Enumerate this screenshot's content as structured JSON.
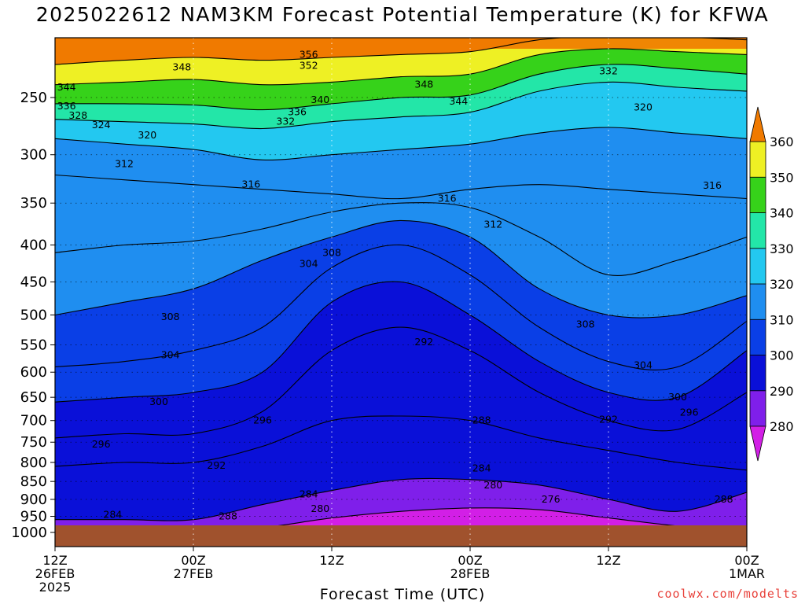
{
  "chart_data": {
    "type": "heatmap",
    "title": "2025022612 NAM3KM Forecast Potential Temperature (K) for KFWA",
    "xlabel": "Forecast Time (UTC)",
    "credit": "coolwx.com/modelts",
    "y_axis": {
      "scale": "log-pressure, inverted",
      "ylim": [
        1000,
        200
      ],
      "ticks": [
        250,
        300,
        350,
        400,
        450,
        500,
        550,
        600,
        650,
        700,
        750,
        800,
        850,
        900,
        950,
        1000
      ]
    },
    "x_axis": {
      "ticks": [
        {
          "hour": 0,
          "lines": [
            "12Z",
            "26FEB",
            "2025"
          ]
        },
        {
          "hour": 12,
          "lines": [
            "00Z",
            "27FEB"
          ]
        },
        {
          "hour": 24,
          "lines": [
            "12Z"
          ]
        },
        {
          "hour": 36,
          "lines": [
            "00Z",
            "28FEB"
          ]
        },
        {
          "hour": 48,
          "lines": [
            "12Z"
          ]
        },
        {
          "hour": 60,
          "lines": [
            "00Z",
            "1MAR"
          ]
        }
      ],
      "xlim": [
        0,
        60
      ]
    },
    "colorbar": {
      "levels": [
        280,
        290,
        300,
        310,
        320,
        330,
        340,
        350,
        360
      ],
      "colors": [
        "#d21fe6",
        "#7f1fea",
        "#0a10d8",
        "#0a3fe6",
        "#1f8ef0",
        "#23c8f0",
        "#23e6a8",
        "#36d21a",
        "#eef024",
        "#f5b400",
        "#f07a00"
      ]
    },
    "isentropes": {
      "hours": [
        0,
        6,
        12,
        18,
        24,
        30,
        36,
        42,
        48,
        54,
        60
      ],
      "series": [
        {
          "theta": 280,
          "pressures": [
            1000,
            1000,
            1000,
            985,
            955,
            935,
            925,
            930,
            955,
            980,
            1000
          ]
        },
        {
          "theta": 288,
          "pressures": [
            960,
            960,
            960,
            915,
            875,
            845,
            845,
            860,
            900,
            935,
            880
          ]
        },
        {
          "theta": 292,
          "pressures": [
            810,
            800,
            800,
            760,
            700,
            690,
            700,
            740,
            770,
            800,
            820
          ]
        },
        {
          "theta": 296,
          "pressures": [
            740,
            730,
            730,
            680,
            560,
            520,
            560,
            640,
            700,
            720,
            640
          ]
        },
        {
          "theta": 300,
          "pressures": [
            660,
            650,
            640,
            600,
            480,
            450,
            500,
            580,
            640,
            650,
            560
          ]
        },
        {
          "theta": 304,
          "pressures": [
            590,
            580,
            560,
            520,
            430,
            400,
            440,
            520,
            580,
            590,
            510
          ]
        },
        {
          "theta": 308,
          "pressures": [
            500,
            480,
            460,
            420,
            390,
            370,
            390,
            460,
            500,
            500,
            470
          ]
        },
        {
          "theta": 312,
          "pressures": [
            410,
            400,
            395,
            380,
            360,
            350,
            355,
            390,
            440,
            420,
            390
          ]
        },
        {
          "theta": 316,
          "pressures": [
            320,
            325,
            330,
            335,
            340,
            345,
            335,
            330,
            335,
            340,
            345
          ]
        },
        {
          "theta": 320,
          "pressures": [
            285,
            290,
            295,
            305,
            300,
            295,
            290,
            280,
            275,
            280,
            285
          ]
        },
        {
          "theta": 332,
          "pressures": [
            268,
            270,
            272,
            276,
            270,
            266,
            262,
            245,
            238,
            242,
            245
          ]
        },
        {
          "theta": 340,
          "pressures": [
            255,
            255,
            256,
            260,
            255,
            250,
            248,
            232,
            225,
            228,
            232
          ]
        },
        {
          "theta": 348,
          "pressures": [
            240,
            238,
            236,
            240,
            238,
            234,
            232,
            218,
            214,
            216,
            218
          ]
        },
        {
          "theta": 356,
          "pressures": [
            225,
            222,
            220,
            222,
            220,
            218,
            216,
            208,
            205,
            206,
            208
          ]
        }
      ]
    },
    "contour_labels": [
      {
        "text": "356",
        "hour": 22,
        "p": 218
      },
      {
        "text": "352",
        "hour": 22,
        "p": 226
      },
      {
        "text": "348",
        "hour": 11,
        "p": 227
      },
      {
        "text": "348",
        "hour": 32,
        "p": 240
      },
      {
        "text": "344",
        "hour": 1,
        "p": 242
      },
      {
        "text": "344",
        "hour": 35,
        "p": 253
      },
      {
        "text": "340",
        "hour": 23,
        "p": 252
      },
      {
        "text": "336",
        "hour": 1,
        "p": 257
      },
      {
        "text": "336",
        "hour": 21,
        "p": 262
      },
      {
        "text": "332",
        "hour": 20,
        "p": 270
      },
      {
        "text": "332",
        "hour": 48,
        "p": 230
      },
      {
        "text": "328",
        "hour": 2,
        "p": 265
      },
      {
        "text": "324",
        "hour": 4,
        "p": 273
      },
      {
        "text": "320",
        "hour": 8,
        "p": 282
      },
      {
        "text": "320",
        "hour": 51,
        "p": 258
      },
      {
        "text": "312",
        "hour": 6,
        "p": 309
      },
      {
        "text": "316",
        "hour": 17,
        "p": 330
      },
      {
        "text": "316",
        "hour": 34,
        "p": 345
      },
      {
        "text": "316",
        "hour": 57,
        "p": 331
      },
      {
        "text": "312",
        "hour": 38,
        "p": 375
      },
      {
        "text": "308",
        "hour": 24,
        "p": 410
      },
      {
        "text": "304",
        "hour": 22,
        "p": 425
      },
      {
        "text": "308",
        "hour": 10,
        "p": 503
      },
      {
        "text": "308",
        "hour": 46,
        "p": 515
      },
      {
        "text": "304",
        "hour": 10,
        "p": 568
      },
      {
        "text": "304",
        "hour": 51,
        "p": 587
      },
      {
        "text": "300",
        "hour": 9,
        "p": 660
      },
      {
        "text": "300",
        "hour": 54,
        "p": 650
      },
      {
        "text": "296",
        "hour": 4,
        "p": 755
      },
      {
        "text": "296",
        "hour": 18,
        "p": 700
      },
      {
        "text": "296",
        "hour": 55,
        "p": 682
      },
      {
        "text": "292",
        "hour": 32,
        "p": 545
      },
      {
        "text": "292",
        "hour": 14,
        "p": 808
      },
      {
        "text": "292",
        "hour": 48,
        "p": 698
      },
      {
        "text": "288",
        "hour": 37,
        "p": 700
      },
      {
        "text": "288",
        "hour": 15,
        "p": 950
      },
      {
        "text": "288",
        "hour": 58,
        "p": 900
      },
      {
        "text": "284",
        "hour": 5,
        "p": 945
      },
      {
        "text": "284",
        "hour": 22,
        "p": 885
      },
      {
        "text": "284",
        "hour": 37,
        "p": 815
      },
      {
        "text": "280",
        "hour": 23,
        "p": 927
      },
      {
        "text": "280",
        "hour": 38,
        "p": 860
      },
      {
        "text": "276",
        "hour": 43,
        "p": 900
      }
    ]
  }
}
